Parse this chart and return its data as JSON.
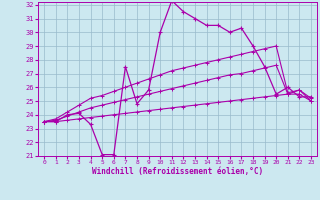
{
  "xlabel": "Windchill (Refroidissement éolien,°C)",
  "xlim": [
    -0.5,
    23.5
  ],
  "ylim": [
    21,
    32.2
  ],
  "yticks": [
    21,
    22,
    23,
    24,
    25,
    26,
    27,
    28,
    29,
    30,
    31,
    32
  ],
  "xticks": [
    0,
    1,
    2,
    3,
    4,
    5,
    6,
    7,
    8,
    9,
    10,
    11,
    12,
    13,
    14,
    15,
    16,
    17,
    18,
    19,
    20,
    21,
    22,
    23
  ],
  "bg_color": "#cce8f0",
  "line_color": "#aa00aa",
  "grid_color": "#99bbcc",
  "curve_x": [
    0,
    1,
    2,
    3,
    4,
    5,
    6,
    7,
    8,
    9,
    10,
    11,
    12,
    13,
    14,
    15,
    16,
    17,
    18,
    19,
    20,
    21,
    22,
    23
  ],
  "curve_y": [
    23.5,
    23.5,
    24.0,
    24.1,
    23.3,
    21.1,
    21.1,
    27.5,
    24.8,
    25.8,
    30.0,
    32.3,
    31.5,
    31.0,
    30.5,
    30.5,
    30.0,
    30.3,
    29.0,
    27.5,
    25.5,
    26.0,
    25.3,
    25.3
  ],
  "line1_x": [
    0,
    1,
    2,
    3,
    4,
    5,
    6,
    7,
    8,
    9,
    10,
    11,
    12,
    13,
    14,
    15,
    16,
    17,
    18,
    19,
    20,
    21,
    22,
    23
  ],
  "line1_y": [
    23.5,
    23.7,
    24.2,
    24.7,
    25.2,
    25.4,
    25.7,
    26.0,
    26.3,
    26.6,
    26.9,
    27.2,
    27.4,
    27.6,
    27.8,
    28.0,
    28.2,
    28.4,
    28.6,
    28.8,
    29.0,
    25.6,
    25.8,
    25.2
  ],
  "line2_x": [
    0,
    1,
    2,
    3,
    4,
    5,
    6,
    7,
    8,
    9,
    10,
    11,
    12,
    13,
    14,
    15,
    16,
    17,
    18,
    19,
    20,
    21,
    22,
    23
  ],
  "line2_y": [
    23.5,
    23.6,
    23.9,
    24.2,
    24.5,
    24.7,
    24.9,
    25.1,
    25.3,
    25.5,
    25.7,
    25.9,
    26.1,
    26.3,
    26.5,
    26.7,
    26.9,
    27.0,
    27.2,
    27.4,
    27.6,
    25.5,
    25.8,
    25.0
  ],
  "line3_x": [
    0,
    1,
    2,
    3,
    4,
    5,
    6,
    7,
    8,
    9,
    10,
    11,
    12,
    13,
    14,
    15,
    16,
    17,
    18,
    19,
    20,
    21,
    22,
    23
  ],
  "line3_y": [
    23.5,
    23.5,
    23.6,
    23.7,
    23.8,
    23.9,
    24.0,
    24.1,
    24.2,
    24.3,
    24.4,
    24.5,
    24.6,
    24.7,
    24.8,
    24.9,
    25.0,
    25.1,
    25.2,
    25.3,
    25.4,
    25.5,
    25.5,
    25.0
  ]
}
